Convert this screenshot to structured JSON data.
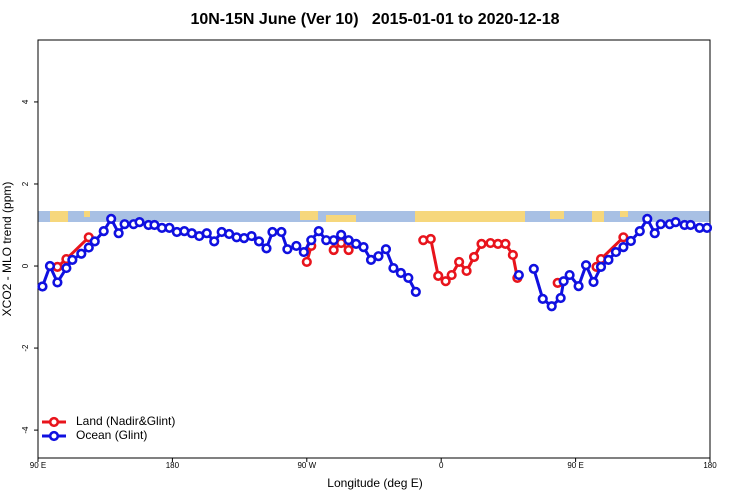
{
  "chart_data": {
    "type": "line",
    "title": "10N-15N June (Ver 10)   2015-01-01 to 2020-12-18",
    "xlabel": "Longitude (deg E)",
    "ylabel": "XCO2 - MLO trend (ppm)",
    "xlim": [
      90,
      540
    ],
    "ylim": [
      -4.68,
      5.51
    ],
    "xticks": [
      {
        "value": 90,
        "label": "90 E"
      },
      {
        "value": 180,
        "label": "180"
      },
      {
        "value": 270,
        "label": "90 W"
      },
      {
        "value": 360,
        "label": "0"
      },
      {
        "value": 450,
        "label": "90 E"
      },
      {
        "value": 540,
        "label": "180"
      }
    ],
    "yticks": [
      -4,
      -2,
      0,
      2,
      4
    ],
    "legend": "bottom left",
    "series": [
      {
        "name": "Land (Nadir&Glint)",
        "color": "#e8141c",
        "x": [
          103,
          109,
          124,
          null,
          270,
          273,
          null,
          288,
          293,
          298,
          null,
          348,
          353,
          358,
          363,
          367,
          372,
          377,
          382,
          387,
          393,
          398,
          403,
          408,
          411,
          null,
          438,
          null,
          464,
          467,
          482
        ],
        "values": [
          -0.02,
          0.17,
          0.7,
          null,
          0.1,
          0.49,
          null,
          0.39,
          0.56,
          0.39,
          null,
          0.63,
          0.66,
          -0.24,
          -0.37,
          -0.22,
          0.1,
          -0.12,
          0.22,
          0.54,
          0.56,
          0.54,
          0.54,
          0.27,
          -0.29,
          null,
          -0.41,
          null,
          -0.02,
          0.17,
          0.7
        ]
      },
      {
        "name": "Ocean (Glint)",
        "color": "#1010e0",
        "x": [
          93,
          98,
          103,
          109,
          113,
          119,
          124,
          128,
          134,
          139,
          144,
          148,
          154,
          158,
          164,
          168,
          173,
          178,
          183,
          188,
          193,
          198,
          203,
          208,
          213,
          218,
          223,
          228,
          233,
          238,
          243,
          247,
          253,
          257,
          263,
          268,
          273,
          278,
          283,
          288,
          293,
          298,
          303,
          308,
          313,
          318,
          323,
          328,
          333,
          338,
          343,
          null,
          412,
          null,
          422,
          428,
          434,
          440,
          442,
          446,
          452,
          457,
          462,
          467,
          472,
          477,
          482,
          487,
          493,
          498,
          503,
          507,
          513,
          517,
          523,
          527,
          533,
          538
        ],
        "values": [
          -0.5,
          0.0,
          -0.4,
          -0.05,
          0.15,
          0.3,
          0.45,
          0.6,
          0.85,
          1.15,
          0.8,
          1.02,
          1.02,
          1.07,
          1.0,
          1.0,
          0.93,
          0.93,
          0.83,
          0.85,
          0.8,
          0.73,
          0.8,
          0.6,
          0.83,
          0.78,
          0.7,
          0.68,
          0.73,
          0.6,
          0.43,
          0.83,
          0.83,
          0.41,
          0.49,
          0.34,
          0.63,
          0.85,
          0.63,
          0.63,
          0.76,
          0.63,
          0.54,
          0.46,
          0.15,
          0.24,
          0.41,
          -0.05,
          -0.17,
          -0.29,
          -0.63,
          null,
          -0.22,
          null,
          -0.07,
          -0.8,
          -0.98,
          -0.78,
          -0.37,
          -0.22,
          -0.49,
          0.02,
          -0.39,
          -0.02,
          0.15,
          0.34,
          0.46,
          0.61,
          0.85,
          1.15,
          0.8,
          1.02,
          1.02,
          1.07,
          1.0,
          1.0,
          0.93,
          0.93
        ]
      }
    ]
  }
}
